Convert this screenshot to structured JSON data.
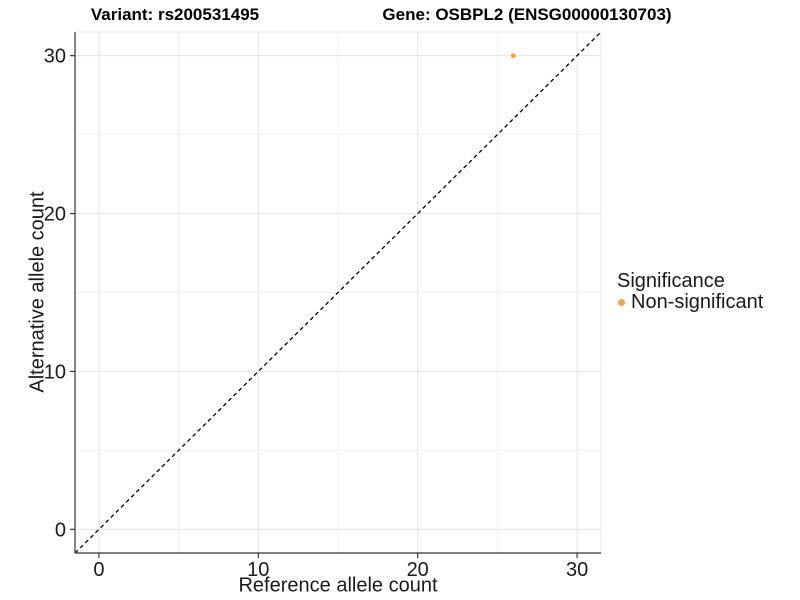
{
  "colors": {
    "point": "#F9A240",
    "grid_major": "#E4E4E4",
    "grid_minor": "#F1F1F1",
    "panel_border": "#E4E4E4",
    "axis": "#333333",
    "dashed_line": "#000000",
    "text": "#1A1A1A",
    "background": "#FFFFFF"
  },
  "chart_data": {
    "type": "scatter",
    "title_variant": "Variant: rs200531495",
    "title_gene": "Gene: OSBPL2 (ENSG00000130703)",
    "xlabel": "Reference allele count",
    "ylabel": "Alternative allele count",
    "xlim": [
      -1.5,
      31.5
    ],
    "ylim": [
      -1.5,
      31.5
    ],
    "xticks": [
      0,
      10,
      20,
      30
    ],
    "yticks": [
      0,
      10,
      20,
      30
    ],
    "xminor": [
      5,
      15,
      25
    ],
    "yminor": [
      5,
      15,
      25
    ],
    "grid": "major+minor",
    "panel_background": "white",
    "reference_line": {
      "type": "identity y=x",
      "style": "dashed",
      "color": "#000000"
    },
    "series": [
      {
        "name": "Non-significant",
        "color": "#F9A240",
        "points": [
          {
            "x": 26,
            "y": 30
          }
        ]
      }
    ],
    "legend": {
      "title": "Significance",
      "position": "right"
    }
  }
}
